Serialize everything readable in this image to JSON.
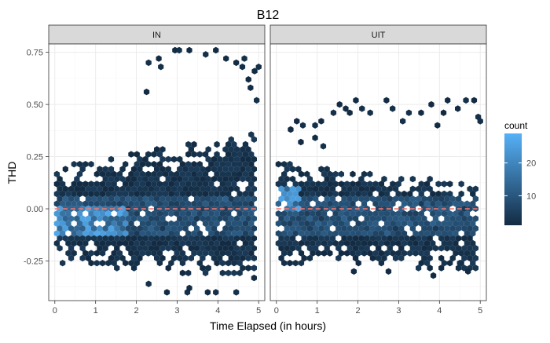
{
  "chart_data": {
    "type": "hexbin",
    "title": "B12",
    "xlabel": "Time Elapsed (in hours)",
    "ylabel": "THD",
    "xlim": [
      -0.15,
      5.15
    ],
    "ylim": [
      -0.44,
      0.79
    ],
    "x_ticks": [
      0,
      1,
      2,
      3,
      4,
      5
    ],
    "x_tick_labels": [
      "0",
      "1",
      "2",
      "3",
      "4",
      "5"
    ],
    "y_ticks": [
      -0.25,
      0.0,
      0.25,
      0.5,
      0.75
    ],
    "y_tick_labels": [
      "-0.25",
      "0.00",
      "0.25",
      "0.50",
      "0.75"
    ],
    "grid": true,
    "reference_line": {
      "y": 0.0,
      "style": "dashed",
      "color": "#f8766d"
    },
    "colorbar": {
      "title": "count",
      "range": [
        1,
        29
      ],
      "ticks": [
        10,
        20
      ],
      "tick_labels": [
        "10",
        "20"
      ],
      "low_color": "#132b43",
      "high_color": "#56b1f7",
      "position": "right"
    },
    "panels": [
      {
        "label": "IN",
        "dense_region": {
          "x": [
            0.05,
            4.95
          ],
          "y_low": [
            -0.24,
            -0.32
          ],
          "y_high": [
            0.18,
            0.35
          ]
        },
        "hotspot": {
          "x": [
            0.0,
            1.8
          ],
          "y": [
            -0.12,
            0.02
          ]
        },
        "outliers": [
          [
            2.3,
            0.7
          ],
          [
            2.55,
            0.72
          ],
          [
            2.95,
            0.76
          ],
          [
            3.05,
            0.76
          ],
          [
            3.3,
            0.76
          ],
          [
            3.7,
            0.74
          ],
          [
            3.95,
            0.76
          ],
          [
            4.2,
            0.72
          ],
          [
            4.45,
            0.7
          ],
          [
            4.6,
            0.68
          ],
          [
            4.65,
            0.72
          ],
          [
            4.9,
            0.66
          ],
          [
            5.0,
            0.68
          ],
          [
            4.8,
            0.58
          ],
          [
            2.25,
            0.56
          ],
          [
            4.95,
            0.52
          ],
          [
            4.75,
            0.62
          ],
          [
            2.6,
            0.68
          ],
          [
            2.75,
            -0.4
          ],
          [
            3.25,
            -0.4
          ],
          [
            3.75,
            -0.4
          ],
          [
            3.95,
            -0.4
          ],
          [
            4.45,
            -0.4
          ],
          [
            3.3,
            -0.38
          ],
          [
            2.3,
            -0.36
          ]
        ]
      },
      {
        "label": "UIT",
        "dense_region": {
          "x": [
            0.05,
            4.95
          ],
          "y_low": [
            -0.24,
            -0.28
          ],
          "y_high": [
            0.2,
            0.1
          ]
        },
        "hotspot": {
          "x": [
            0.0,
            0.6
          ],
          "y": [
            -0.02,
            0.1
          ]
        },
        "outliers": [
          [
            0.5,
            0.42
          ],
          [
            0.65,
            0.4
          ],
          [
            0.95,
            0.4
          ],
          [
            1.1,
            0.42
          ],
          [
            1.4,
            0.46
          ],
          [
            1.55,
            0.5
          ],
          [
            1.7,
            0.48
          ],
          [
            1.8,
            0.46
          ],
          [
            1.95,
            0.52
          ],
          [
            2.1,
            0.48
          ],
          [
            2.3,
            0.46
          ],
          [
            2.7,
            0.52
          ],
          [
            2.85,
            0.48
          ],
          [
            3.1,
            0.42
          ],
          [
            3.25,
            0.46
          ],
          [
            3.55,
            0.46
          ],
          [
            3.8,
            0.5
          ],
          [
            4.1,
            0.46
          ],
          [
            4.2,
            0.52
          ],
          [
            4.45,
            0.48
          ],
          [
            4.65,
            0.52
          ],
          [
            4.85,
            0.52
          ],
          [
            4.95,
            0.44
          ],
          [
            5.0,
            0.42
          ],
          [
            3.95,
            0.4
          ],
          [
            0.35,
            0.38
          ],
          [
            0.6,
            0.32
          ],
          [
            0.95,
            0.34
          ],
          [
            1.15,
            0.3
          ],
          [
            1.9,
            -0.3
          ],
          [
            2.75,
            -0.3
          ],
          [
            3.85,
            -0.32
          ],
          [
            4.7,
            -0.3
          ],
          [
            4.5,
            -0.26
          ]
        ]
      }
    ]
  }
}
